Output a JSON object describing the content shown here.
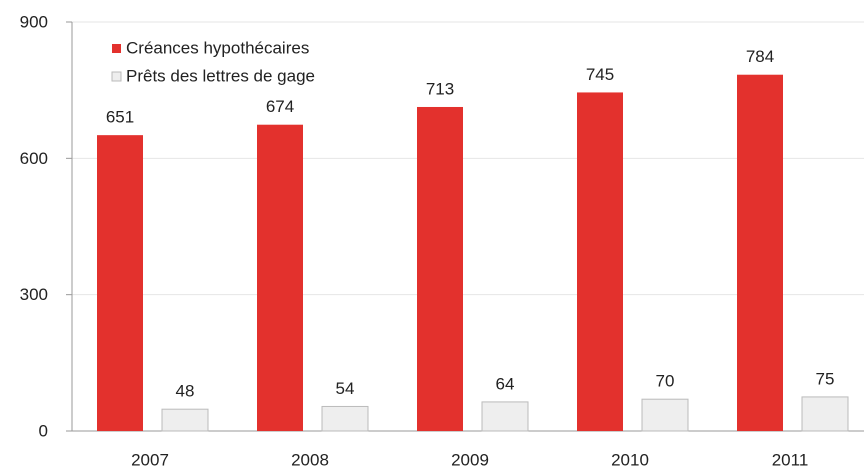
{
  "chart_data": {
    "type": "bar",
    "categories": [
      "2007",
      "2008",
      "2009",
      "2010",
      "2011"
    ],
    "series": [
      {
        "name": "Créances hypothécaires",
        "color": "#e3312d",
        "values": [
          651,
          674,
          713,
          745,
          784
        ]
      },
      {
        "name": "Prêts des lettres de gage",
        "color": "#eeeeee",
        "values": [
          48,
          54,
          64,
          70,
          75
        ]
      }
    ],
    "ylim": [
      0,
      900
    ],
    "yticks": [
      0,
      300,
      600,
      900
    ],
    "grid": true,
    "legend": "upper left"
  }
}
